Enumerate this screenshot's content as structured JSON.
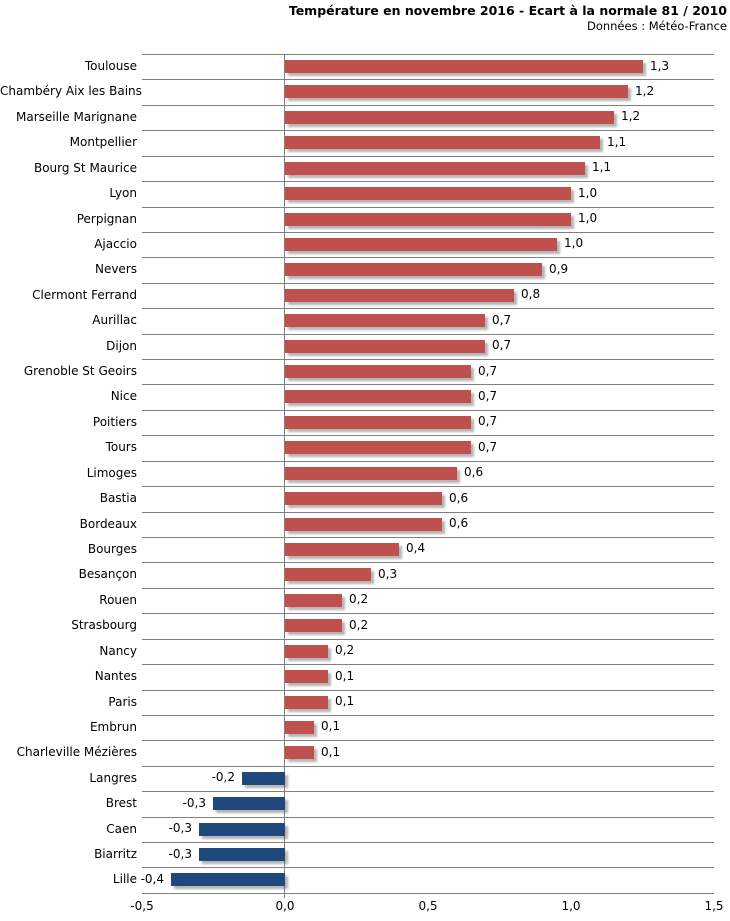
{
  "header": {
    "title": "Température en novembre 2016 - Ecart à la normale 81 / 2010",
    "subtitle": "Données : Météo-France"
  },
  "colors": {
    "positive_bar": "#C0504D",
    "negative_bar": "#1F497D",
    "gridline": "#808080",
    "axis_line": "#808080",
    "text": "#000000",
    "background": "#FFFFFF"
  },
  "chart_data": {
    "type": "bar",
    "orientation": "horizontal",
    "title": "Température en novembre 2016 - Ecart à la normale 81 / 2010",
    "subtitle": "Données : Météo-France",
    "xlabel": "",
    "ylabel": "",
    "xlim": [
      -0.5,
      1.5
    ],
    "x_ticks": [
      -0.5,
      0,
      0.5,
      1,
      1.5
    ],
    "x_tick_labels": [
      "-0,5",
      "0,0",
      "0,5",
      "1,0",
      "1,5"
    ],
    "grid": "horizontal category separators only",
    "legend": "none",
    "categories": [
      "Toulouse",
      "Chambéry Aix les Bains",
      "Marseille Marignane",
      "Montpellier",
      "Bourg St Maurice",
      "Lyon",
      "Perpignan",
      "Ajaccio",
      "Nevers",
      "Clermont Ferrand",
      "Aurillac",
      "Dijon",
      "Grenoble St Geoirs",
      "Nice",
      "Poitiers",
      "Tours",
      "Limoges",
      "Bastia",
      "Bordeaux",
      "Bourges",
      "Besançon",
      "Rouen",
      "Strasbourg",
      "Nancy",
      "Nantes",
      "Paris",
      "Embrun",
      "Charleville Mézières",
      "Langres",
      "Brest",
      "Caen",
      "Biarritz",
      "Lille"
    ],
    "values": [
      1.25,
      1.2,
      1.15,
      1.1,
      1.05,
      1.0,
      1.0,
      0.95,
      0.9,
      0.8,
      0.7,
      0.7,
      0.65,
      0.65,
      0.65,
      0.65,
      0.6,
      0.55,
      0.55,
      0.4,
      0.3,
      0.2,
      0.2,
      0.15,
      0.15,
      0.15,
      0.1,
      0.1,
      -0.15,
      -0.25,
      -0.3,
      -0.3,
      -0.4
    ],
    "value_labels": [
      "1,3",
      "1,2",
      "1,2",
      "1,1",
      "1,1",
      "1,0",
      "1,0",
      "1,0",
      "0,9",
      "0,8",
      "0,7",
      "0,7",
      "0,7",
      "0,7",
      "0,7",
      "0,7",
      "0,6",
      "0,6",
      "0,6",
      "0,4",
      "0,3",
      "0,2",
      "0,2",
      "0,2",
      "0,1",
      "0,1",
      "0,1",
      "0,1",
      "-0,2",
      "-0,3",
      "-0,3",
      "-0,3",
      "-0,4"
    ]
  }
}
